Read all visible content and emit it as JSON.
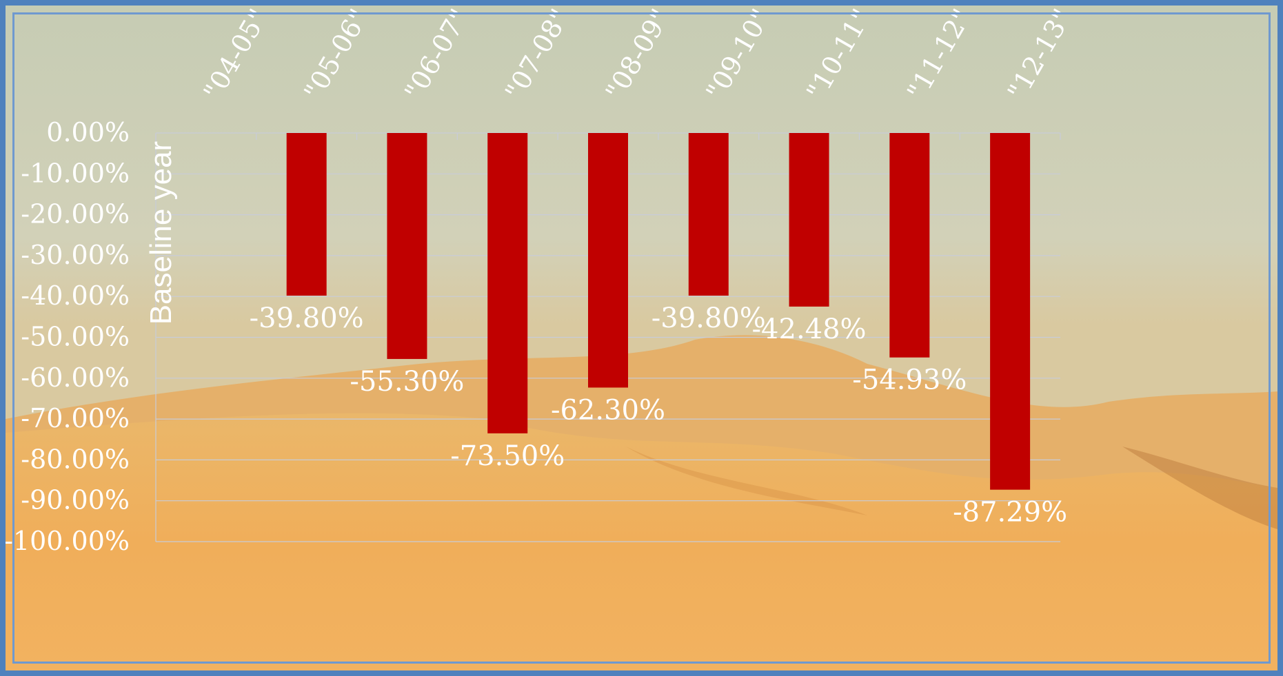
{
  "chart_data": {
    "type": "bar",
    "title": "",
    "xlabel": "",
    "ylabel": "Baseline year",
    "categories": [
      "\"04-05\"",
      "\"05-06\"",
      "\"06-07\"",
      "\"07-08\"",
      "\"08-09\"",
      "\"09-10\"",
      "\"10-11\"",
      "\"11-12\"",
      "\"12-13\""
    ],
    "values": [
      null,
      -39.8,
      -55.3,
      -73.5,
      -62.3,
      -39.8,
      -42.48,
      -54.93,
      -87.29
    ],
    "data_labels": [
      "",
      "-39.80%",
      "-55.30%",
      "-73.50%",
      "-62.30%",
      "-39.80%",
      "-42.48%",
      "-54.93%",
      "-87.29%"
    ],
    "y_ticks": [
      "0.00%",
      "-10.00%",
      "-20.00%",
      "-30.00%",
      "-40.00%",
      "-50.00%",
      "-60.00%",
      "-70.00%",
      "-80.00%",
      "-90.00%",
      "-100.00%"
    ],
    "ylim": [
      -100,
      0
    ],
    "category_axis_position": "top",
    "grid": true,
    "legend": "none",
    "colors": {
      "bar": "#c00000",
      "text": "#ffffff",
      "grid": "#c8ccd8",
      "frame": "#4f81bd"
    }
  }
}
